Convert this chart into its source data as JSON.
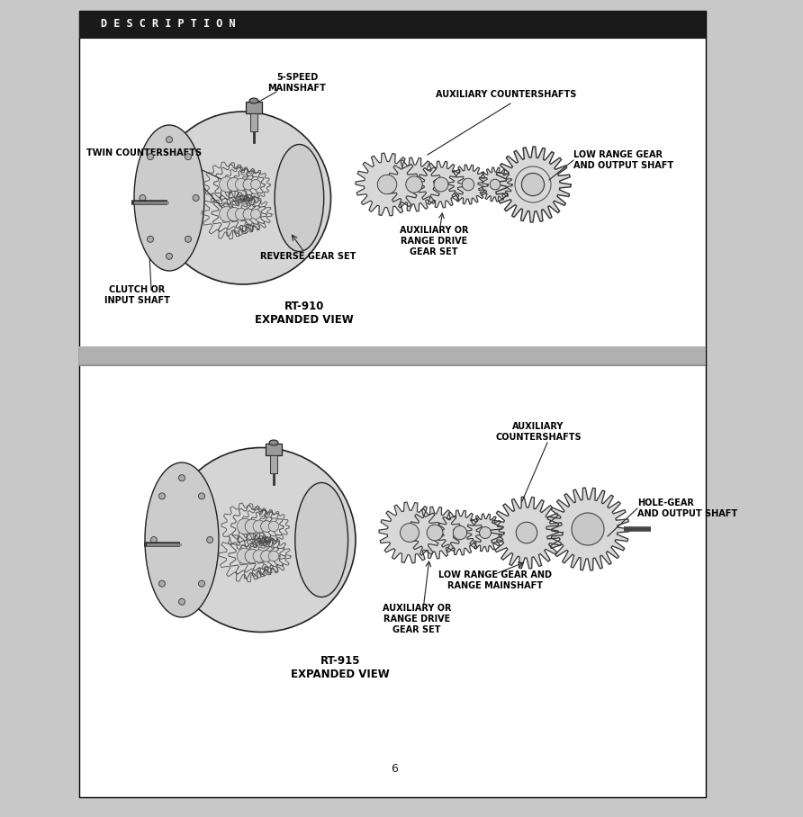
{
  "page_bg": "#c8c8c8",
  "white_bg": "#ffffff",
  "black": "#000000",
  "dark_gray": "#222222",
  "header_bg": "#1a1a1a",
  "header_text": "D E S C R I P T I O N",
  "header_text_color": "#ffffff",
  "page_number": "6",
  "top_labels": {
    "5speed_mainshaft": "5-SPEED\nMAINSHAFT",
    "twin_countershafts": "TWIN COUNTERSHAFTS",
    "aux_countershafts": "AUXILIARY COUNTERSHAFTS",
    "low_range_gear": "LOW RANGE GEAR\nAND OUTPUT SHAFT",
    "aux_or_range": "AUXILIARY OR\nRANGE DRIVE\nGEAR SET",
    "reverse_gear": "REVERSE GEAR SET",
    "clutch_or_input": "CLUTCH OR\nINPUT SHAFT",
    "rt910": "RT-910\nEXPANDED VIEW"
  },
  "bottom_labels": {
    "aux_countershafts": "AUXILIARY\nCOUNTERSHAFTS",
    "hole_gear": "HOLE-GEAR\nAND OUTPUT SHAFT",
    "low_range_mainshaft": "LOW RANGE GEAR AND\nRANGE MAINSHAFT",
    "aux_or_range": "AUXILIARY OR\nRANGE DRIVE\nGEAR SET",
    "rt915": "RT-915\nEXPANDED VIEW"
  }
}
